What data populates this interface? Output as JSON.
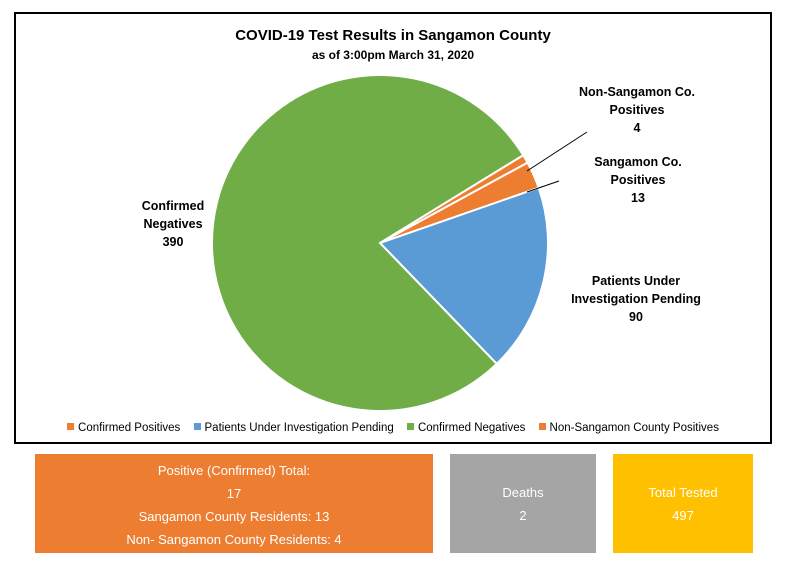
{
  "chart_data": {
    "type": "pie",
    "title": "COVID-19 Test Results in Sangamon County",
    "subtitle": "as of 3:00pm March 31, 2020",
    "slices": [
      {
        "key": "sangamon",
        "legend": "Confirmed Positives",
        "label_lines": [
          "Sangamon Co.",
          "Positives"
        ],
        "value": 13,
        "color": "#ed7d31"
      },
      {
        "key": "pui",
        "legend": "Patients Under Investigation Pending",
        "label_lines": [
          "Patients Under",
          "Investigation Pending"
        ],
        "value": 90,
        "color": "#5b9bd5"
      },
      {
        "key": "negatives",
        "legend": "Confirmed Negatives",
        "label_lines": [
          "Confirmed",
          "Negatives"
        ],
        "value": 390,
        "color": "#70ad47"
      },
      {
        "key": "nonsangamon",
        "legend": "Non-Sangamon County Positives",
        "label_lines": [
          "Non-Sangamon Co.",
          "Positives"
        ],
        "value": 4,
        "color": "#ed7d31"
      }
    ],
    "legend_position": "bottom"
  },
  "summary": {
    "positive": {
      "label": "Positive (Confirmed) Total:",
      "total": "17",
      "sangamon_line": "Sangamon County Residents: 13",
      "non_sangamon_line": "Non- Sangamon County Residents: 4",
      "color": "#ed7d31"
    },
    "deaths": {
      "label": "Deaths",
      "value": "2",
      "color": "#a5a5a5"
    },
    "tested": {
      "label": "Total Tested",
      "value": "497",
      "color": "#ffc000"
    }
  }
}
